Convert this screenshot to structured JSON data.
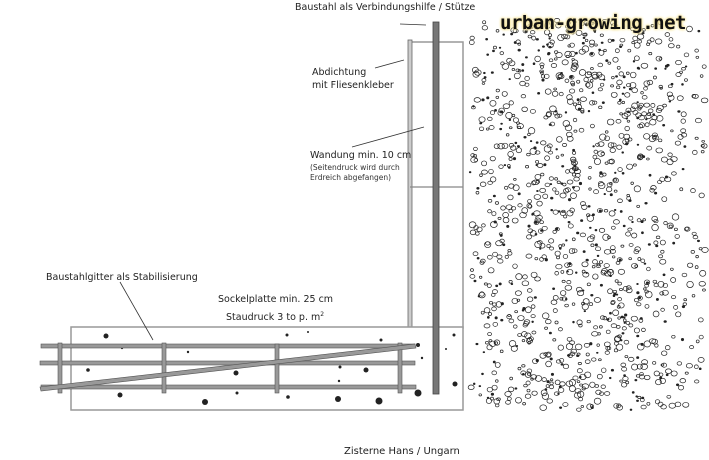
{
  "logo": "urban-growing.net",
  "labels": {
    "rod": "Baustahl als Verbindungshilfe / Stütze",
    "seal_1": "Abdichtung",
    "seal_2": "mit Fliesenkleber",
    "wall": "Wandung min. 10 cm",
    "wall_note_1": "(Seitendruck wird durch",
    "wall_note_2": "Erdreich abgefangen)",
    "mesh": "Baustahlgitter als Stabilisierung",
    "slab_1": "Sockelplatte min. 25 cm",
    "slab_2": "Staudruck 3 to p. m",
    "slab_sup": "2"
  },
  "caption": "Zisterne Hans / Ungarn",
  "colors": {
    "rebar": "#8a8a8a",
    "outline": "#999999",
    "concrete_dot": "#222222"
  }
}
